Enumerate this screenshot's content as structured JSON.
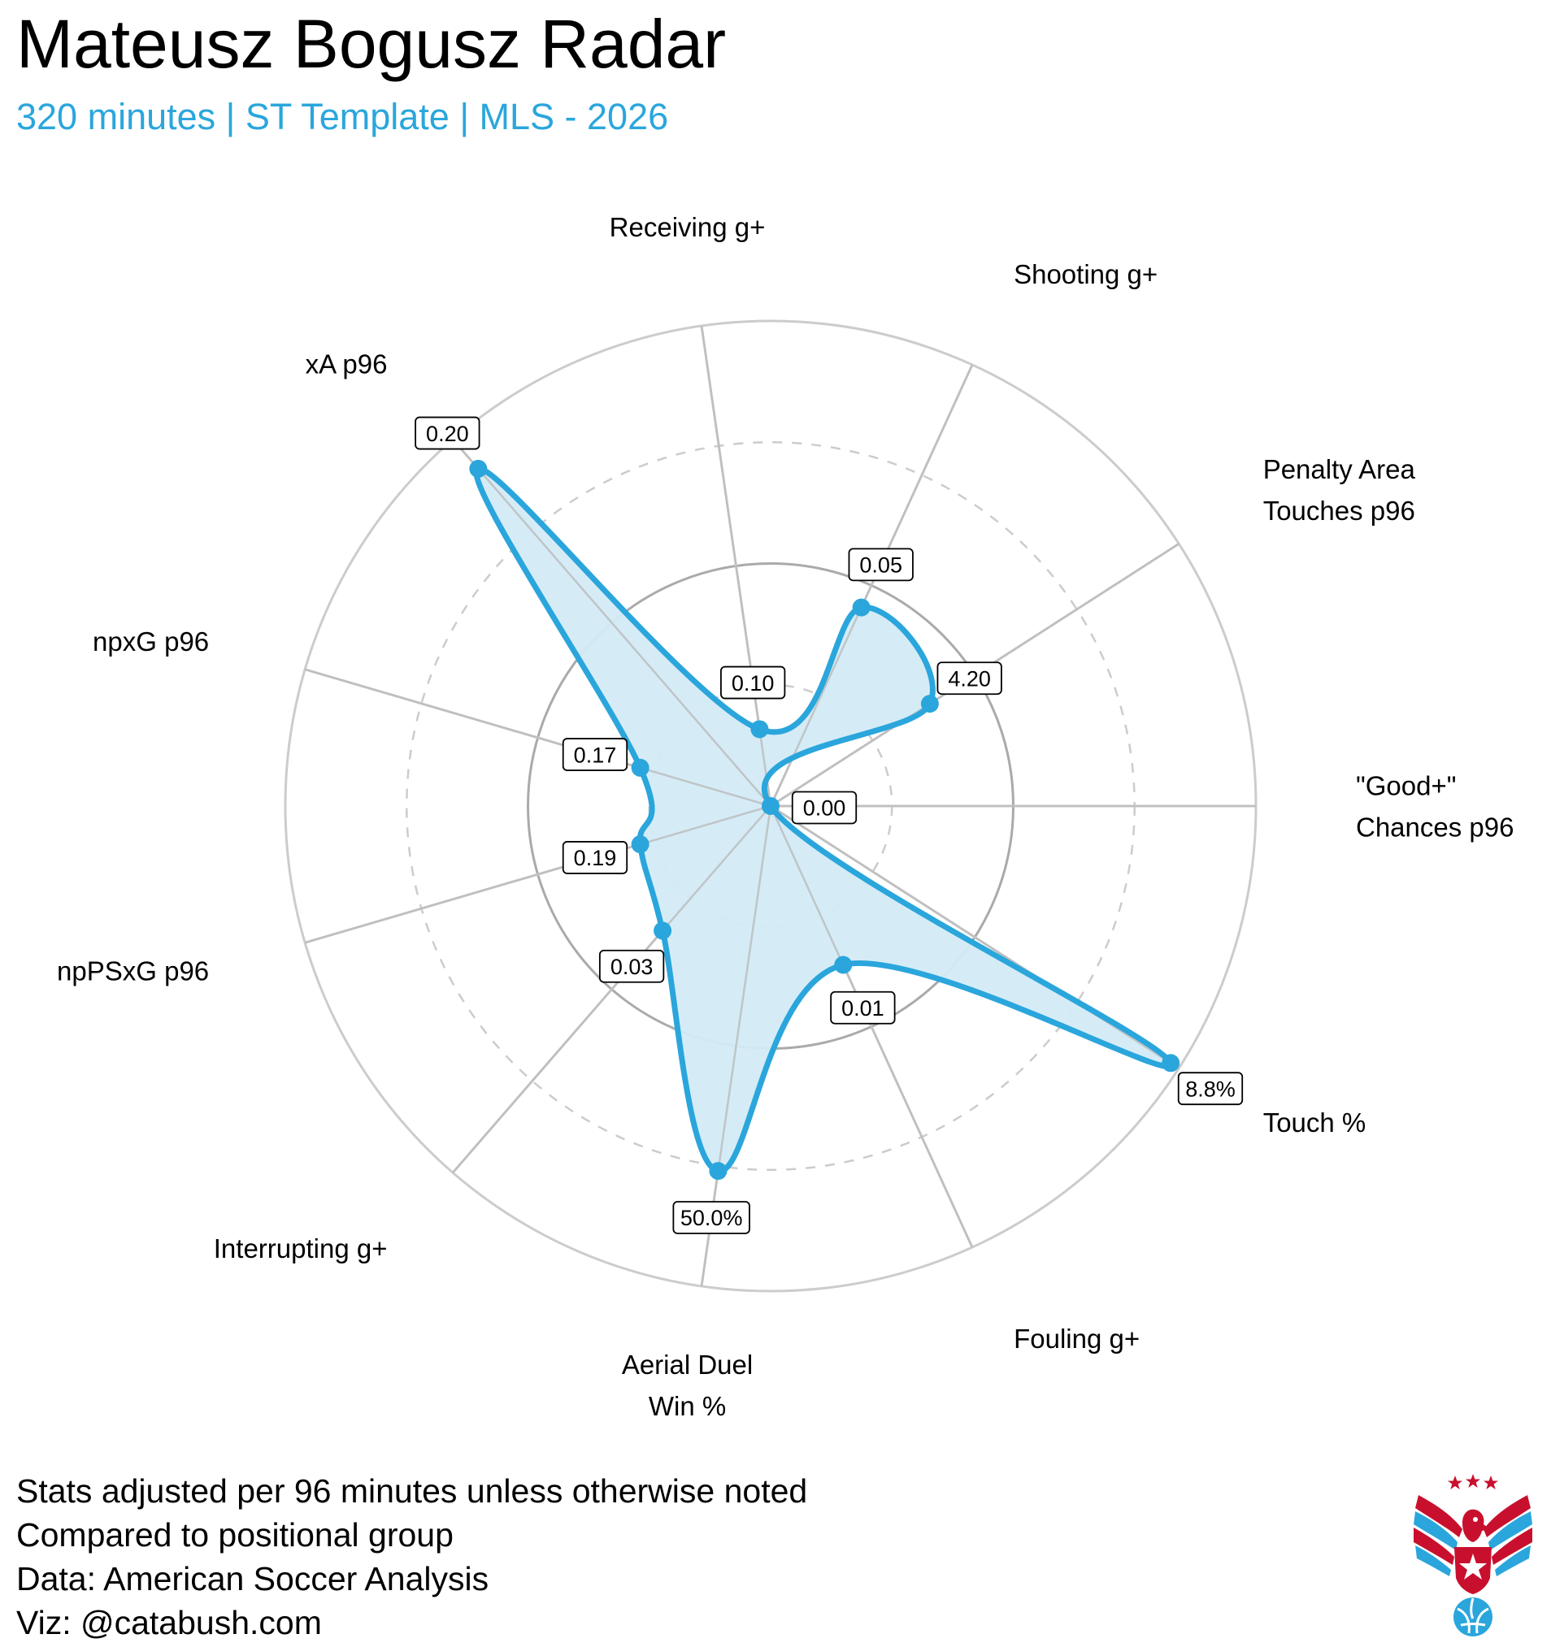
{
  "title": "Mateusz Bogusz Radar",
  "subtitle": "320 minutes | ST Template | MLS - 2026",
  "colors": {
    "accent": "#2aa6dc",
    "fill": "#d3ebf7",
    "grid": "#cccccc",
    "grid_mid": "#aaaaaa",
    "text": "#000000"
  },
  "chart_data": {
    "type": "radar",
    "scale": "percentile",
    "rlim": [
      0,
      100
    ],
    "grid_rings": [
      25,
      50,
      75,
      100
    ],
    "axes": [
      {
        "label_lines": [
          "\"Good+\"",
          "Chances p96"
        ],
        "value_label": "0.00",
        "percentile": 0
      },
      {
        "label_lines": [
          "Penalty Area",
          "Touches p96"
        ],
        "value_label": "4.20",
        "percentile": 39
      },
      {
        "label_lines": [
          "Shooting g+"
        ],
        "value_label": "0.05",
        "percentile": 45
      },
      {
        "label_lines": [
          "Receiving g+"
        ],
        "value_label": "0.10",
        "percentile": 16
      },
      {
        "label_lines": [
          "xA p96"
        ],
        "value_label": "0.20",
        "percentile": 92
      },
      {
        "label_lines": [
          "npxG p96"
        ],
        "value_label": "0.17",
        "percentile": 28
      },
      {
        "label_lines": [
          "npPSxG p96"
        ],
        "value_label": "0.19",
        "percentile": 28
      },
      {
        "label_lines": [
          "Interrupting g+"
        ],
        "value_label": "0.03",
        "percentile": 34
      },
      {
        "label_lines": [
          "Aerial Duel",
          "Win %"
        ],
        "value_label": "50.0%",
        "percentile": 76
      },
      {
        "label_lines": [
          "Fouling g+"
        ],
        "value_label": "0.01",
        "percentile": 36
      },
      {
        "label_lines": [
          "Touch %"
        ],
        "value_label": "8.8%",
        "percentile": 98
      }
    ]
  },
  "footer": {
    "line1": "Stats adjusted per 96 minutes unless otherwise noted",
    "line2": "Compared to positional group",
    "line3": "Data: American Soccer Analysis",
    "line4": "Viz: @catabush.com"
  },
  "logo_icon": "eagle-soccer-ball-logo"
}
